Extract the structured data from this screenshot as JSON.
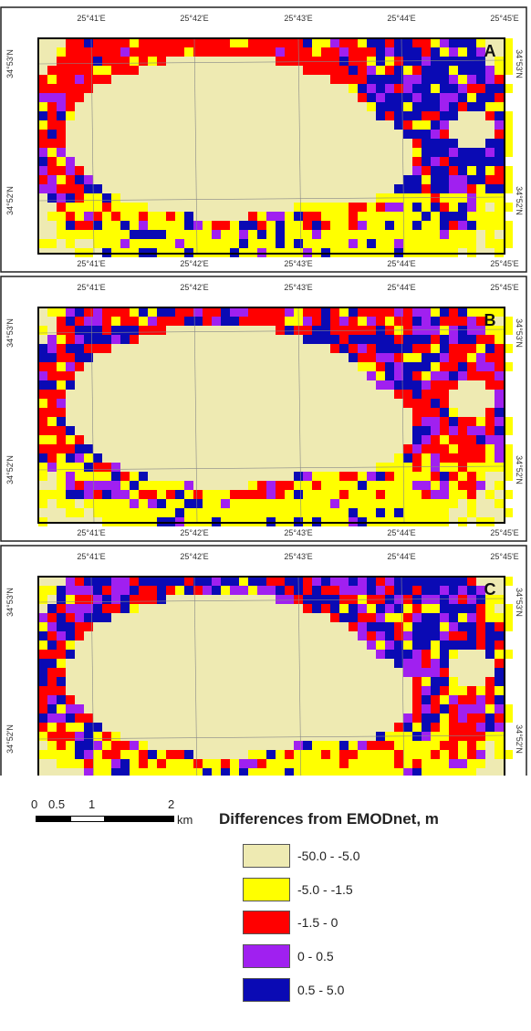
{
  "panels": [
    {
      "letter": "A",
      "seed": 11
    },
    {
      "letter": "B",
      "seed": 29
    },
    {
      "letter": "C",
      "seed": 53
    }
  ],
  "lon_ticks": [
    "25°41'E",
    "25°42'E",
    "25°43'E",
    "25°44'E",
    "25°45'E"
  ],
  "lat_ticks": [
    "34°53'N",
    "34°52'N"
  ],
  "scalebar": {
    "labels": [
      "0",
      "0.5",
      "1",
      "2"
    ],
    "unit": "km"
  },
  "legend": {
    "title": "Differences from EMODnet, m",
    "classes": [
      {
        "label": "-50.0 - -5.0",
        "color": "#eeeab2"
      },
      {
        "label": "-5.0 - -1.5",
        "color": "#ffff00"
      },
      {
        "label": "-1.5 - 0",
        "color": "#ff0000"
      },
      {
        "label": "0 - 0.5",
        "color": "#a020f0"
      },
      {
        "label": "0.5 - 5.0",
        "color": "#0a0ab4"
      }
    ]
  }
}
